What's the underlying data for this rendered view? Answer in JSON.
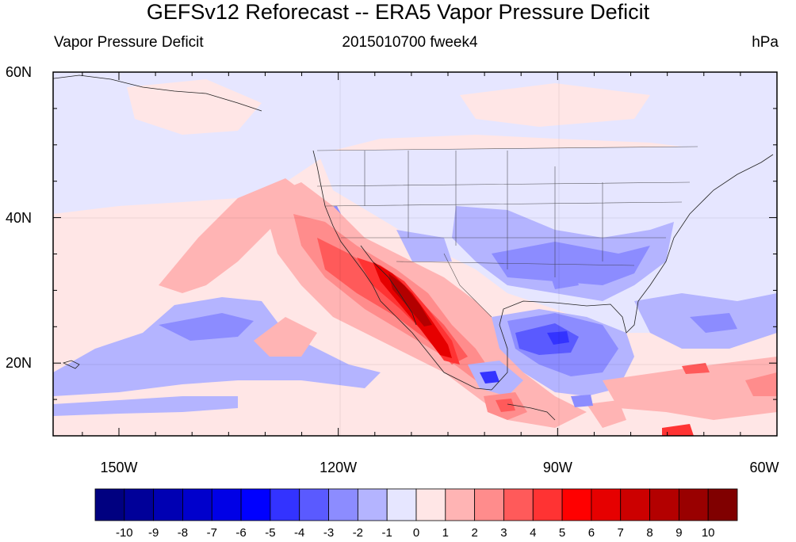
{
  "title": "GEFSv12 Reforecast -- ERA5 Vapor Pressure Deficit",
  "subtitle_left": "Vapor Pressure Deficit",
  "subtitle_center": "2015010700 fweek4",
  "subtitle_right": "hPa",
  "lat_labels": [
    {
      "text": "60N",
      "lat": 60
    },
    {
      "text": "40N",
      "lat": 40
    },
    {
      "text": "20N",
      "lat": 20
    }
  ],
  "lon_labels": [
    {
      "text": "150W",
      "lon": -150
    },
    {
      "text": "120W",
      "lon": -120
    },
    {
      "text": "90W",
      "lon": -90
    },
    {
      "text": "60W",
      "lon": -60
    }
  ],
  "map_extent": {
    "lon_min": -159,
    "lon_max": -60,
    "lat_min": 10,
    "lat_max": 60
  },
  "colorbar": {
    "colors": [
      "#000080",
      "#000099",
      "#0000b3",
      "#0000cc",
      "#0000e6",
      "#0000ff",
      "#3333ff",
      "#5a5aff",
      "#8c8cff",
      "#b4b4ff",
      "#e6e6ff",
      "#ffe6e6",
      "#ffb4b4",
      "#ff8c8c",
      "#ff5a5a",
      "#ff3333",
      "#ff0000",
      "#e60000",
      "#cc0000",
      "#b30000",
      "#990000",
      "#800000"
    ],
    "labels": [
      "-10",
      "-9",
      "-8",
      "-7",
      "-6",
      "-5",
      "-4",
      "-3",
      "-2",
      "-1",
      "0",
      "1",
      "2",
      "3",
      "4",
      "5",
      "6",
      "7",
      "8",
      "9",
      "10"
    ]
  },
  "field_features": [
    {
      "name": "pacific-background",
      "value": 0.4
    },
    {
      "name": "north-pacific-light-blue",
      "value": -0.6
    },
    {
      "name": "central-pacific-blue-band",
      "value": -1.8
    },
    {
      "name": "eastern-us-negative",
      "value": -2.5
    },
    {
      "name": "gulf-of-mexico-negative",
      "value": -3.5
    },
    {
      "name": "baja-mexico-positive-core",
      "value": 7.5
    },
    {
      "name": "offshore-california-positive",
      "value": 2.5
    },
    {
      "name": "caribbean-mixed",
      "value": -1.5
    }
  ]
}
